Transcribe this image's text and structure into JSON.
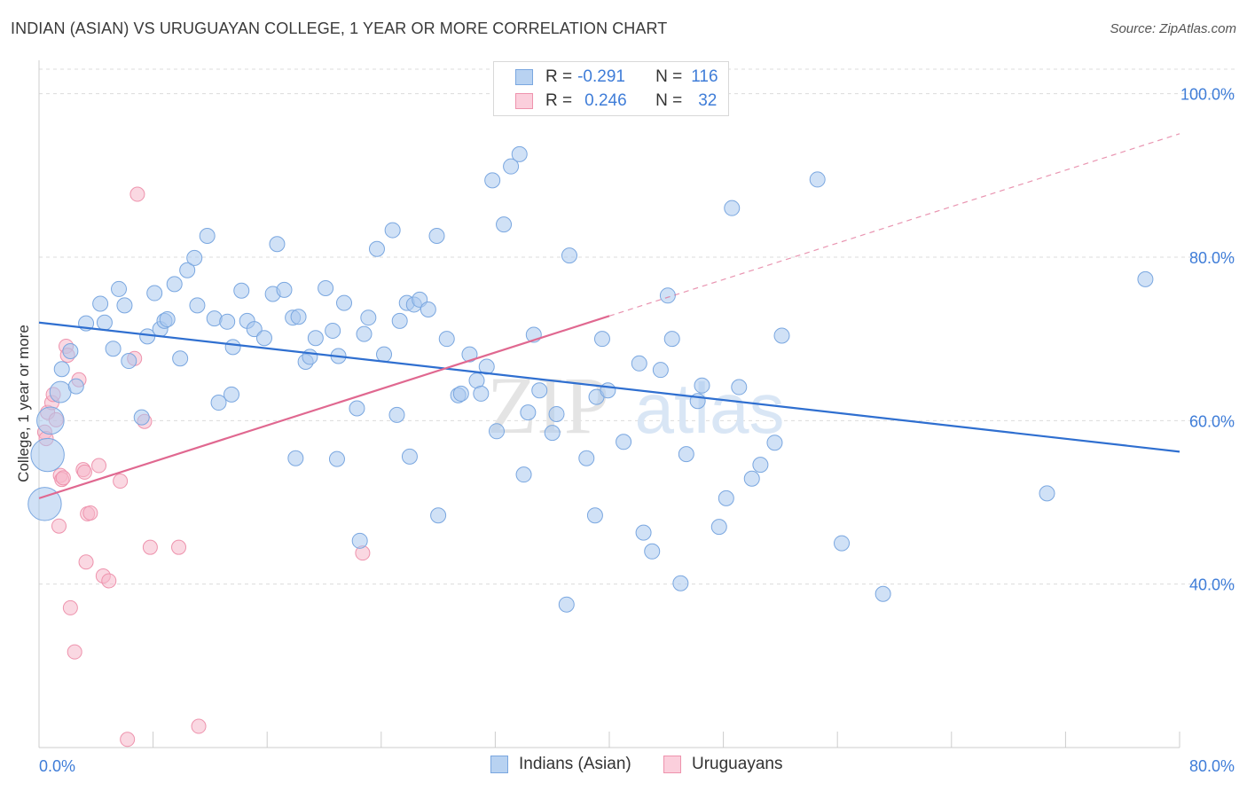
{
  "header": {
    "title": "INDIAN (ASIAN) VS URUGUAYAN COLLEGE, 1 YEAR OR MORE CORRELATION CHART",
    "source": "Source: ZipAtlas.com"
  },
  "legend": {
    "row1": {
      "r_label": "R =",
      "r_value": "-0.291",
      "n_label": "N =",
      "n_value": "116"
    },
    "row2": {
      "r_label": "R =",
      "r_value": "0.246",
      "n_label": "N =",
      "n_value": "32"
    }
  },
  "watermark": {
    "zip": "ZIP",
    "atlas": "atlas"
  },
  "colors": {
    "blue_fill": "#a9c8ee",
    "blue_stroke": "#7aa7e0",
    "blue_line": "#2f6fd0",
    "pink_fill": "#f6b8ca",
    "pink_stroke": "#ee93ad",
    "pink_line": "#e06890",
    "tick_label": "#3f7dd8",
    "grid": "#dcdcdc"
  },
  "chart_data": {
    "type": "scatter",
    "title": "INDIAN (ASIAN) VS URUGUAYAN COLLEGE, 1 YEAR OR MORE CORRELATION CHART",
    "xlabel": "",
    "ylabel": "College, 1 year or more",
    "xlim": [
      0,
      80
    ],
    "ylim": [
      20,
      103
    ],
    "x_tick_labels": [
      "0.0%",
      "80.0%"
    ],
    "y_ticks": [
      40,
      60,
      80,
      100
    ],
    "y_tick_labels": [
      "40.0%",
      "60.0%",
      "80.0%",
      "100.0%"
    ],
    "grid": true,
    "legend_position": "bottom",
    "series": [
      {
        "name": "Indians (Asian)",
        "color": "#a9c8ee",
        "trend": {
          "x": [
            0,
            80
          ],
          "y": [
            72.0,
            56.2
          ]
        },
        "points": [
          [
            0.6,
            55.8
          ],
          [
            0.4,
            49.8
          ],
          [
            0.8,
            60.0
          ],
          [
            1.5,
            63.5
          ],
          [
            2.6,
            64.2
          ],
          [
            1.6,
            66.3
          ],
          [
            2.2,
            68.5
          ],
          [
            3.3,
            71.9
          ],
          [
            4.6,
            72.0
          ],
          [
            5.2,
            68.8
          ],
          [
            6.3,
            67.3
          ],
          [
            4.3,
            74.3
          ],
          [
            5.6,
            76.1
          ],
          [
            6.0,
            74.1
          ],
          [
            7.6,
            70.3
          ],
          [
            8.1,
            75.6
          ],
          [
            8.5,
            71.2
          ],
          [
            8.8,
            72.2
          ],
          [
            9.0,
            72.4
          ],
          [
            9.5,
            76.7
          ],
          [
            9.9,
            67.6
          ],
          [
            10.4,
            78.4
          ],
          [
            10.9,
            79.9
          ],
          [
            11.1,
            74.1
          ],
          [
            11.8,
            82.6
          ],
          [
            12.3,
            72.5
          ],
          [
            12.6,
            62.2
          ],
          [
            13.2,
            72.1
          ],
          [
            13.6,
            69.0
          ],
          [
            14.2,
            75.9
          ],
          [
            14.6,
            72.2
          ],
          [
            15.1,
            71.2
          ],
          [
            15.8,
            70.1
          ],
          [
            16.4,
            75.5
          ],
          [
            16.7,
            81.6
          ],
          [
            17.2,
            76.0
          ],
          [
            17.8,
            72.6
          ],
          [
            18.2,
            72.7
          ],
          [
            18.7,
            67.2
          ],
          [
            19.0,
            67.8
          ],
          [
            19.4,
            70.1
          ],
          [
            20.1,
            76.2
          ],
          [
            20.6,
            71.0
          ],
          [
            21.0,
            67.9
          ],
          [
            21.4,
            74.4
          ],
          [
            22.3,
            61.5
          ],
          [
            22.8,
            70.6
          ],
          [
            23.1,
            72.6
          ],
          [
            23.7,
            81.0
          ],
          [
            24.2,
            68.1
          ],
          [
            24.8,
            83.3
          ],
          [
            25.3,
            72.2
          ],
          [
            25.8,
            74.4
          ],
          [
            26.3,
            74.2
          ],
          [
            26.7,
            74.8
          ],
          [
            27.3,
            73.6
          ],
          [
            27.9,
            82.6
          ],
          [
            28.6,
            70.0
          ],
          [
            29.4,
            63.1
          ],
          [
            29.6,
            63.3
          ],
          [
            30.2,
            68.1
          ],
          [
            30.7,
            64.9
          ],
          [
            31.4,
            66.6
          ],
          [
            32.1,
            58.7
          ],
          [
            31.8,
            89.4
          ],
          [
            32.6,
            84.0
          ],
          [
            33.1,
            91.1
          ],
          [
            33.7,
            92.6
          ],
          [
            34.3,
            61.0
          ],
          [
            34.7,
            70.5
          ],
          [
            35.1,
            63.7
          ],
          [
            36.3,
            60.8
          ],
          [
            37.2,
            80.2
          ],
          [
            38.4,
            55.4
          ],
          [
            39.1,
            62.9
          ],
          [
            39.5,
            70.0
          ],
          [
            39.9,
            63.7
          ],
          [
            41.0,
            57.4
          ],
          [
            42.1,
            67.0
          ],
          [
            42.4,
            46.3
          ],
          [
            43.6,
            66.2
          ],
          [
            44.1,
            75.3
          ],
          [
            44.4,
            70.0
          ],
          [
            45.4,
            55.9
          ],
          [
            46.2,
            62.4
          ],
          [
            46.5,
            64.3
          ],
          [
            48.2,
            50.5
          ],
          [
            48.6,
            86.0
          ],
          [
            49.1,
            64.1
          ],
          [
            47.7,
            47.0
          ],
          [
            50.0,
            52.9
          ],
          [
            50.6,
            54.6
          ],
          [
            51.6,
            57.3
          ],
          [
            52.1,
            70.4
          ],
          [
            54.6,
            89.5
          ],
          [
            56.3,
            45.0
          ],
          [
            59.2,
            38.8
          ],
          [
            70.7,
            51.1
          ],
          [
            77.6,
            77.3
          ],
          [
            39.0,
            48.4
          ],
          [
            34.0,
            53.4
          ],
          [
            28.0,
            48.4
          ],
          [
            20.9,
            55.3
          ],
          [
            25.1,
            60.7
          ],
          [
            22.5,
            45.3
          ],
          [
            18.0,
            55.4
          ],
          [
            13.5,
            63.2
          ],
          [
            7.2,
            60.4
          ],
          [
            45.0,
            40.1
          ],
          [
            43.0,
            44.0
          ],
          [
            37.0,
            37.5
          ],
          [
            31.0,
            63.3
          ],
          [
            26.0,
            55.6
          ],
          [
            36.0,
            58.5
          ]
        ],
        "point_sizes": [
          2.2,
          2.2,
          1.8,
          1.4
        ]
      },
      {
        "name": "Uruguayans",
        "color": "#f6b8ca",
        "trend": {
          "x": [
            0,
            40
          ],
          "y": [
            50.5,
            72.8
          ]
        },
        "trend_extension": {
          "x": [
            40,
            80
          ],
          "y": [
            72.8,
            95.1
          ]
        },
        "points": [
          [
            0.4,
            58.6
          ],
          [
            0.5,
            57.8
          ],
          [
            0.6,
            61.0
          ],
          [
            0.9,
            62.2
          ],
          [
            1.0,
            63.2
          ],
          [
            1.2,
            60.1
          ],
          [
            1.4,
            47.1
          ],
          [
            1.5,
            53.3
          ],
          [
            1.6,
            52.8
          ],
          [
            1.7,
            53.0
          ],
          [
            1.9,
            69.1
          ],
          [
            2.0,
            68.0
          ],
          [
            2.2,
            37.1
          ],
          [
            2.5,
            31.7
          ],
          [
            2.8,
            65.0
          ],
          [
            3.1,
            54.0
          ],
          [
            3.2,
            53.7
          ],
          [
            3.3,
            42.7
          ],
          [
            3.4,
            48.6
          ],
          [
            3.6,
            48.7
          ],
          [
            4.2,
            54.5
          ],
          [
            4.5,
            41.0
          ],
          [
            4.9,
            40.4
          ],
          [
            5.7,
            52.6
          ],
          [
            6.2,
            21.0
          ],
          [
            6.7,
            67.6
          ],
          [
            6.9,
            87.7
          ],
          [
            7.8,
            44.5
          ],
          [
            9.8,
            44.5
          ],
          [
            11.2,
            22.6
          ],
          [
            22.7,
            43.8
          ],
          [
            7.4,
            59.9
          ]
        ]
      }
    ]
  },
  "bottom_legend": {
    "item1": "Indians (Asian)",
    "item2": "Uruguayans"
  }
}
